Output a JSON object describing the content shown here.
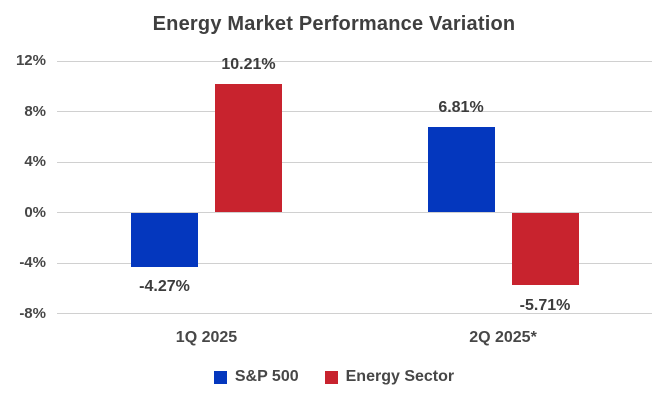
{
  "title": "Energy Market Performance Variation",
  "colors": {
    "sp500": "#0437BE",
    "energy": "#C8232E",
    "gridline": "#d0d0d0",
    "text": "#3f3f3f",
    "background": "#ffffff"
  },
  "chart_data": {
    "type": "bar",
    "title": "Energy Market Performance Variation",
    "categories": [
      "1Q 2025",
      "2Q 2025*"
    ],
    "series": [
      {
        "name": "S&P 500",
        "color": "#0437BE",
        "values": [
          -4.27,
          6.81
        ],
        "labels": [
          "-4.27%",
          "6.81%"
        ]
      },
      {
        "name": "Energy Sector",
        "color": "#C8232E",
        "values": [
          10.21,
          -5.71
        ],
        "labels": [
          "10.21%",
          "-5.71%"
        ]
      }
    ],
    "xlabel": "",
    "ylabel": "",
    "ylim": [
      -8,
      12
    ],
    "yticks": [
      {
        "value": 12,
        "label": "12%"
      },
      {
        "value": 8,
        "label": "8%"
      },
      {
        "value": 4,
        "label": "4%"
      },
      {
        "value": 0,
        "label": "0%"
      },
      {
        "value": -4,
        "label": "-4%"
      },
      {
        "value": -8,
        "label": "-8%"
      }
    ],
    "grid": true,
    "legend_position": "bottom"
  },
  "legend": {
    "items": [
      {
        "label": "S&P 500",
        "color": "#0437BE"
      },
      {
        "label": "Energy Sector",
        "color": "#C8232E"
      }
    ]
  }
}
